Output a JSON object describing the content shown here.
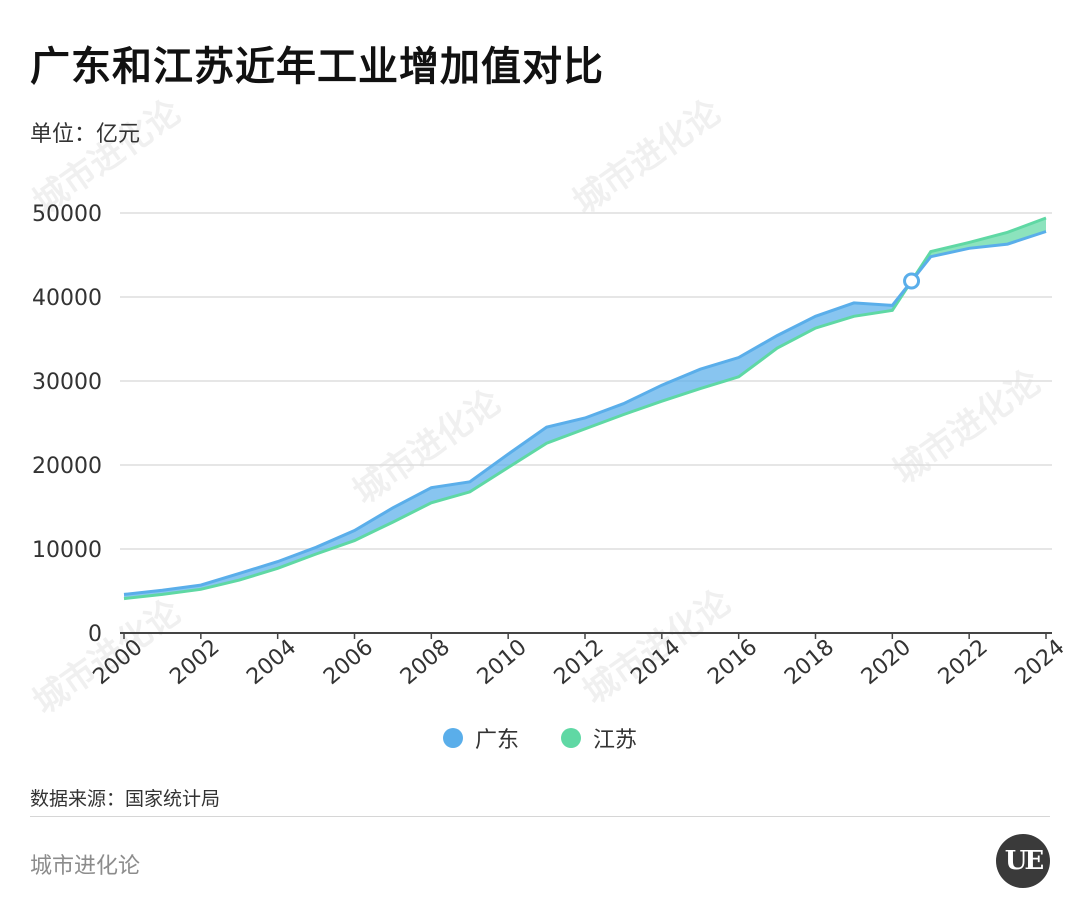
{
  "title": "广东和江苏近年工业增加值对比",
  "unit": "单位：亿元",
  "source": "数据来源：国家统计局",
  "brand": "城市进化论",
  "logo_text": "UE",
  "watermark_text": "城市进化论",
  "colors": {
    "guangdong": "#5aaeea",
    "jiangsu": "#5fd8a4",
    "grid": "#dddddd",
    "axis": "#444444"
  },
  "legend": [
    {
      "name": "广东",
      "color": "#5aaeea"
    },
    {
      "name": "江苏",
      "color": "#5fd8a4"
    }
  ],
  "chart_data": {
    "type": "area",
    "x": [
      2000,
      2001,
      2002,
      2003,
      2004,
      2005,
      2006,
      2007,
      2008,
      2009,
      2010,
      2011,
      2012,
      2013,
      2014,
      2015,
      2016,
      2017,
      2018,
      2019,
      2020,
      2021,
      2022,
      2023,
      2024
    ],
    "x_tick_labels": [
      "2000",
      "2002",
      "2004",
      "2006",
      "2008",
      "2010",
      "2012",
      "2014",
      "2016",
      "2018",
      "2020",
      "2022",
      "2024"
    ],
    "series": [
      {
        "name": "广东",
        "values": [
          4600,
          5100,
          5700,
          7100,
          8500,
          10200,
          12200,
          14900,
          17300,
          18000,
          21300,
          24500,
          25600,
          27300,
          29500,
          31400,
          32800,
          35400,
          37700,
          39300,
          39000,
          44800,
          45800,
          46300,
          47800
        ]
      },
      {
        "name": "江苏",
        "values": [
          4100,
          4600,
          5200,
          6300,
          7700,
          9400,
          11000,
          13200,
          15500,
          16800,
          19700,
          22600,
          24300,
          26000,
          27600,
          29100,
          30500,
          33900,
          36300,
          37700,
          38400,
          45400,
          46500,
          47700,
          49400
        ]
      }
    ],
    "xlim": [
      2000,
      2024
    ],
    "ylim": [
      0,
      50000
    ],
    "y_ticks": [
      0,
      10000,
      20000,
      30000,
      40000,
      50000
    ],
    "crossover_marker_year": 2020.5,
    "grid": true,
    "legend_position": "bottom-center"
  }
}
